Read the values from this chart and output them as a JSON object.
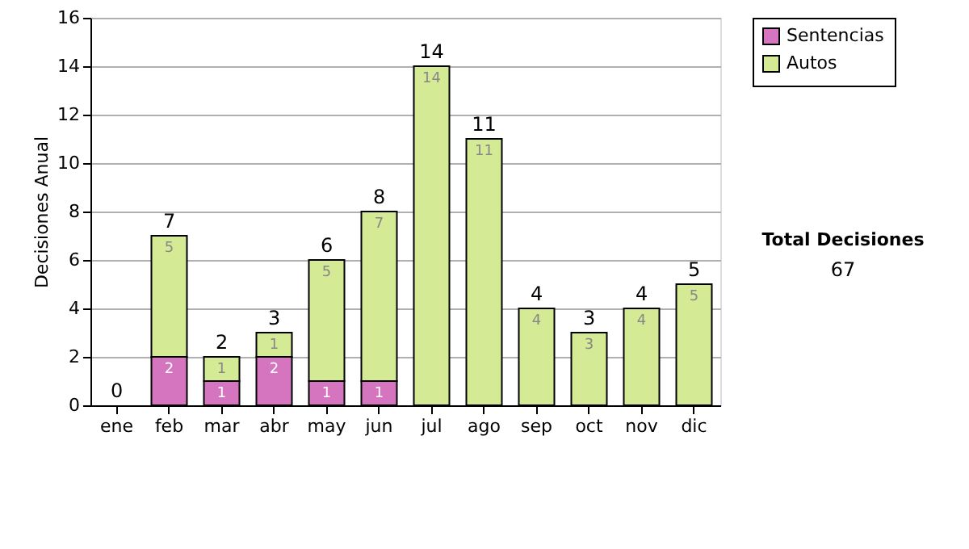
{
  "chart_data": {
    "type": "bar",
    "stacked": true,
    "ylabel": "Decisiones Anual",
    "categories": [
      "ene",
      "feb",
      "mar",
      "abr",
      "may",
      "jun",
      "jul",
      "ago",
      "sep",
      "oct",
      "nov",
      "dic"
    ],
    "series": [
      {
        "name": "Sentencias",
        "color": "#d575c0",
        "values": [
          0,
          2,
          1,
          2,
          1,
          1,
          0,
          0,
          0,
          0,
          0,
          0
        ],
        "value_labels": [
          null,
          "2",
          "1",
          "2",
          "1",
          "1",
          null,
          null,
          null,
          null,
          null,
          null
        ]
      },
      {
        "name": "Autos",
        "color": "#d4ea95",
        "values": [
          0,
          5,
          1,
          1,
          5,
          7,
          14,
          11,
          4,
          3,
          4,
          5
        ],
        "value_labels": [
          null,
          "5",
          "1",
          "1",
          "5",
          "7",
          "14",
          "11",
          "4",
          "3",
          "4",
          "5"
        ]
      }
    ],
    "totals": [
      "0",
      "7",
      "2",
      "3",
      "6",
      "8",
      "14",
      "11",
      "4",
      "3",
      "4",
      "5"
    ],
    "ylim": [
      0,
      16
    ],
    "yticks": [
      0,
      2,
      4,
      6,
      8,
      10,
      12,
      14,
      16
    ],
    "grid": "y",
    "legend": "right",
    "annotations": [
      "Total Decisiones",
      "67"
    ]
  }
}
